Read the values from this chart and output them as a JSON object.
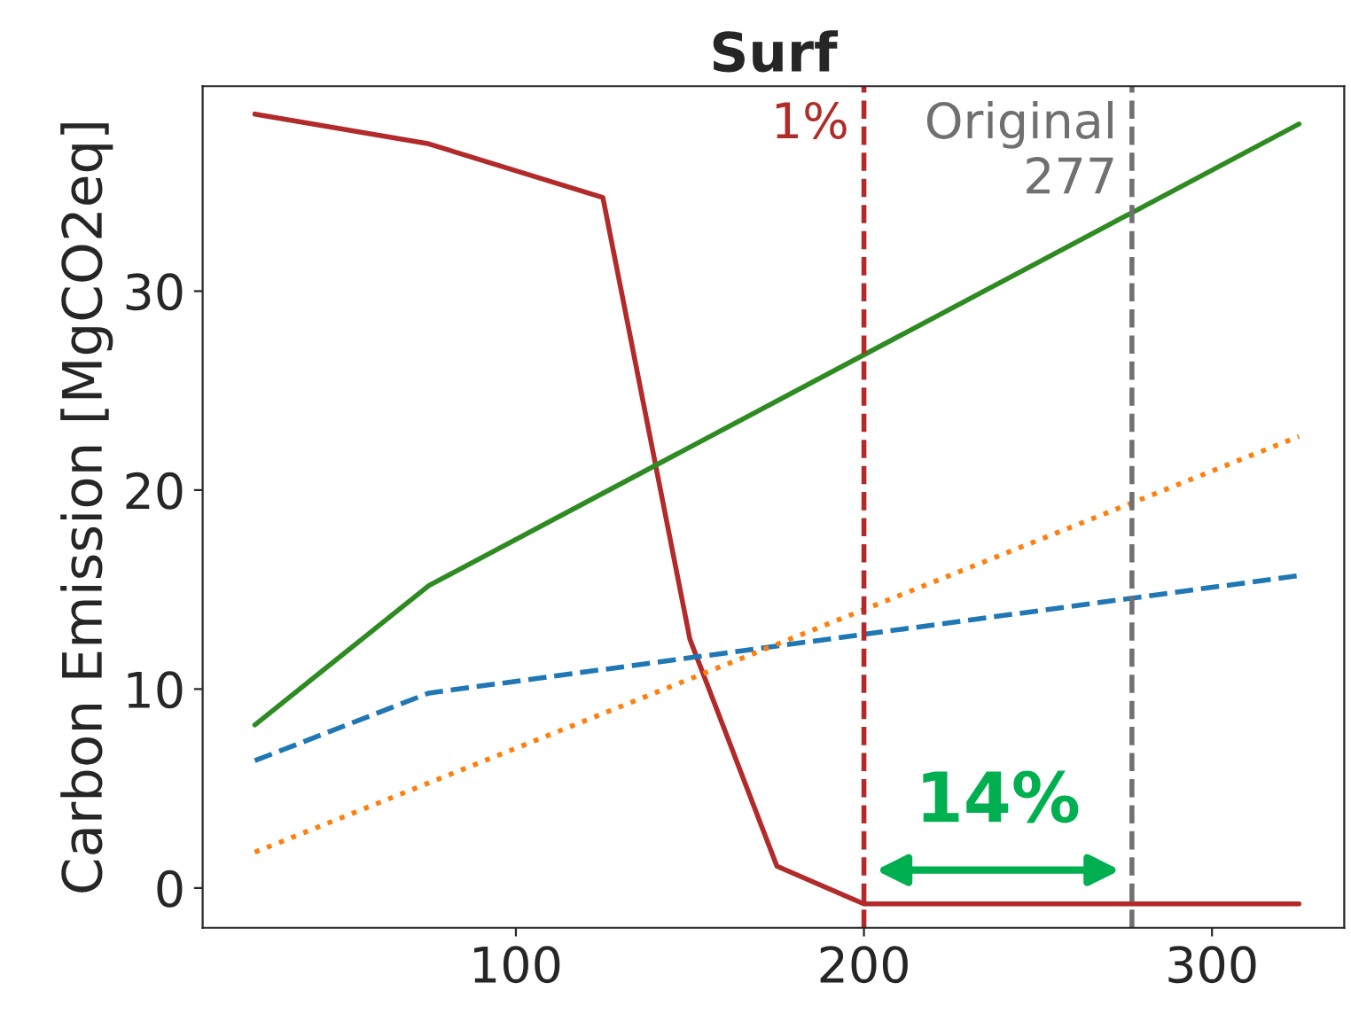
{
  "chart_data": {
    "type": "line",
    "title": "Surf",
    "ylabel": "Carbon Emission [MgCO2eq]",
    "xlim": [
      10,
      338
    ],
    "ylim": [
      -2,
      40.3
    ],
    "xticks": [
      100,
      200,
      300
    ],
    "yticks": [
      0,
      10,
      20,
      30
    ],
    "grid": false,
    "legend": false,
    "series": [
      {
        "color": "#b22a2a",
        "line_style": "solid",
        "x": [
          25,
          75,
          125,
          150,
          175,
          200,
          325
        ],
        "values": [
          38.9,
          37.4,
          34.7,
          12.5,
          1.1,
          -0.8,
          -0.8
        ]
      },
      {
        "color": "#2e8b22",
        "line_style": "solid",
        "x": [
          25,
          75,
          325
        ],
        "values": [
          8.2,
          15.2,
          38.4
        ]
      },
      {
        "color": "#1f77b4",
        "line_style": "dashed",
        "x": [
          25,
          75,
          325
        ],
        "values": [
          6.4,
          9.8,
          15.7
        ]
      },
      {
        "color": "#ff7f0e",
        "line_style": "dotted",
        "x": [
          25,
          325
        ],
        "values": [
          1.8,
          22.7
        ]
      }
    ],
    "ref_lines": [
      {
        "axis": "x",
        "value": 200,
        "color": "#b22a2a",
        "line_style": "dashed"
      },
      {
        "axis": "x",
        "value": 277,
        "label": "Original\n277",
        "color": "#707070",
        "line_style": "dashed"
      }
    ],
    "annotations": [
      "1%",
      "14%"
    ]
  }
}
